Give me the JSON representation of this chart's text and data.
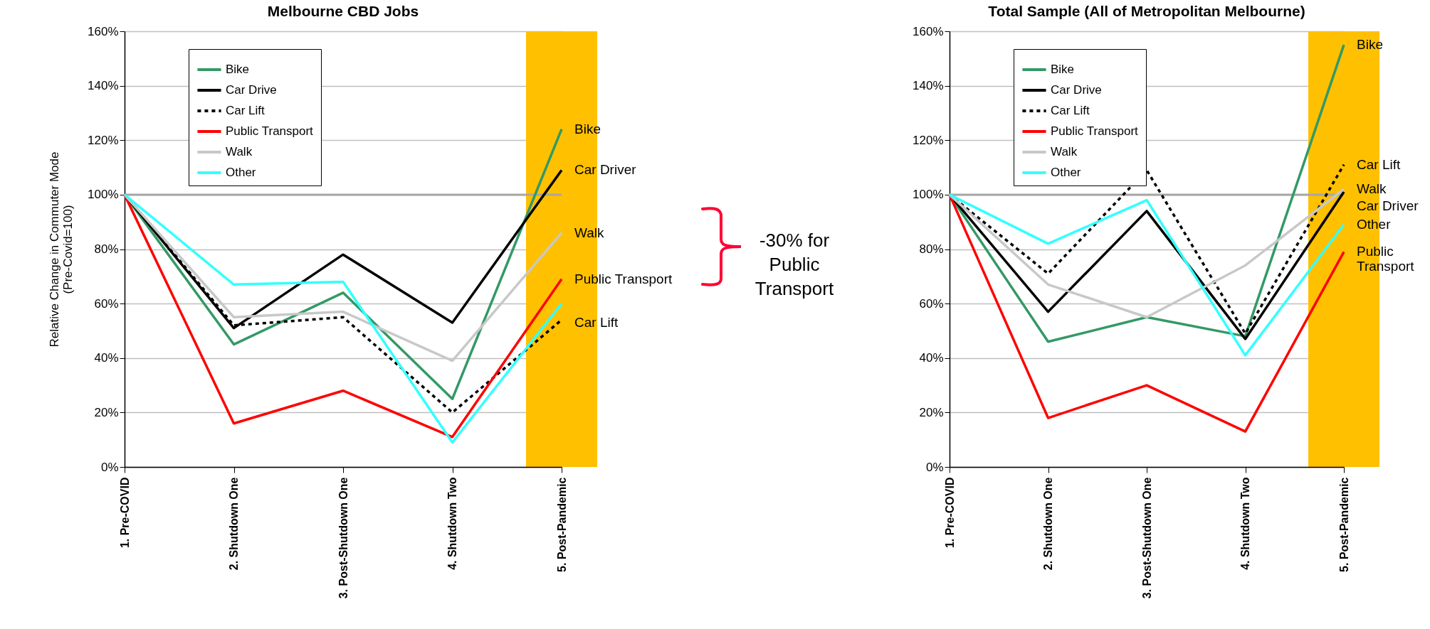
{
  "chart_data": [
    {
      "type": "line",
      "title": "Melbourne CBD Jobs",
      "ylabel": "Relative Change in Commuter Mode (Pre-Covid=100)",
      "categories": [
        "1. Pre-COVID",
        "2. Shutdown One",
        "3. Post-Shutdown One",
        "4. Shutdown Two",
        "5. Post-Pandemic"
      ],
      "series": [
        {
          "name": "Bike",
          "color": "#339966",
          "values": [
            100,
            45,
            64,
            25,
            124
          ]
        },
        {
          "name": "Car Drive",
          "color": "#000000",
          "values": [
            100,
            51,
            78,
            53,
            109
          ]
        },
        {
          "name": "Car Lift",
          "color": "#000000",
          "line_style": "dashed",
          "values": [
            100,
            52,
            55,
            20,
            54
          ]
        },
        {
          "name": "Public Transport",
          "color": "#ff0000",
          "values": [
            100,
            16,
            28,
            11,
            69
          ]
        },
        {
          "name": "Walk",
          "color": "#c8c8c8",
          "values": [
            100,
            55,
            57,
            39,
            86
          ]
        },
        {
          "name": "Other",
          "color": "#33ffff",
          "values": [
            100,
            67,
            68,
            9,
            60
          ]
        }
      ],
      "ylim": [
        0,
        160
      ],
      "yticks": [
        {
          "value": 0,
          "label": "0%"
        },
        {
          "value": 20,
          "label": "20%"
        },
        {
          "value": 40,
          "label": "40%"
        },
        {
          "value": 60,
          "label": "60%"
        },
        {
          "value": 80,
          "label": "80%"
        },
        {
          "value": 100,
          "label": "100%"
        },
        {
          "value": 120,
          "label": "120%"
        },
        {
          "value": 140,
          "label": "140%"
        },
        {
          "value": 160,
          "label": "160%"
        }
      ],
      "grid": "y",
      "legend": "top left",
      "line_style": "solid",
      "ref_lines": [
        {
          "axis": "y",
          "value": 100,
          "color": "#a6a6a6"
        }
      ],
      "bands": [
        {
          "axis": "x",
          "from": "5. Post-Pandemic",
          "to": "5. Post-Pandemic",
          "color": "#ffc000"
        }
      ],
      "annotations": [
        {
          "text": "Bike",
          "x": "5. Post-Pandemic",
          "y": 124
        },
        {
          "text": "Car Driver",
          "x": "5. Post-Pandemic",
          "y": 109
        },
        {
          "text": "Walk",
          "x": "5. Post-Pandemic",
          "y": 86
        },
        {
          "text": "Public Transport",
          "x": "5. Post-Pandemic",
          "y": 69
        },
        {
          "text": "Car Lift",
          "x": "5. Post-Pandemic",
          "y": 53
        },
        "-30% for Public Transport"
      ]
    },
    {
      "type": "line",
      "title": "Total Sample (All of Metropolitan Melbourne)",
      "categories": [
        "1. Pre-COVID",
        "2. Shutdown One",
        "3. Post-Shutdown One",
        "4. Shutdown Two",
        "5. Post-Pandemic"
      ],
      "series": [
        {
          "name": "Bike",
          "color": "#339966",
          "values": [
            100,
            46,
            55,
            48,
            155
          ]
        },
        {
          "name": "Car Drive",
          "color": "#000000",
          "values": [
            100,
            57,
            94,
            47,
            101
          ]
        },
        {
          "name": "Car Lift",
          "color": "#000000",
          "line_style": "dashed",
          "values": [
            100,
            71,
            109,
            49,
            111
          ]
        },
        {
          "name": "Public Transport",
          "color": "#ff0000",
          "values": [
            100,
            18,
            30,
            13,
            79
          ]
        },
        {
          "name": "Walk",
          "color": "#c8c8c8",
          "values": [
            100,
            67,
            55,
            74,
            102
          ]
        },
        {
          "name": "Other",
          "color": "#33ffff",
          "values": [
            100,
            82,
            98,
            41,
            89
          ]
        }
      ],
      "ylim": [
        0,
        160
      ],
      "yticks": [
        {
          "value": 0,
          "label": "0%"
        },
        {
          "value": 20,
          "label": "20%"
        },
        {
          "value": 40,
          "label": "40%"
        },
        {
          "value": 60,
          "label": "60%"
        },
        {
          "value": 80,
          "label": "80%"
        },
        {
          "value": 100,
          "label": "100%"
        },
        {
          "value": 120,
          "label": "120%"
        },
        {
          "value": 140,
          "label": "140%"
        },
        {
          "value": 160,
          "label": "160%"
        }
      ],
      "grid": "y",
      "legend": "top left",
      "line_style": "solid",
      "ref_lines": [
        {
          "axis": "y",
          "value": 100,
          "color": "#a6a6a6"
        }
      ],
      "bands": [
        {
          "axis": "x",
          "from": "5. Post-Pandemic",
          "to": "5. Post-Pandemic",
          "color": "#ffc000"
        }
      ],
      "annotations": [
        {
          "text": "Bike",
          "x": "5. Post-Pandemic",
          "y": 155
        },
        {
          "text": "Car Lift",
          "x": "5. Post-Pandemic",
          "y": 111
        },
        {
          "text": "Walk",
          "x": "5. Post-Pandemic",
          "y": 102
        },
        {
          "text": "Car Driver",
          "x": "5. Post-Pandemic",
          "y": 101
        },
        {
          "text": "Other",
          "x": "5. Post-Pandemic",
          "y": 89
        },
        {
          "text": "Public Transport",
          "x": "5. Post-Pandemic",
          "y": 79
        }
      ]
    }
  ]
}
